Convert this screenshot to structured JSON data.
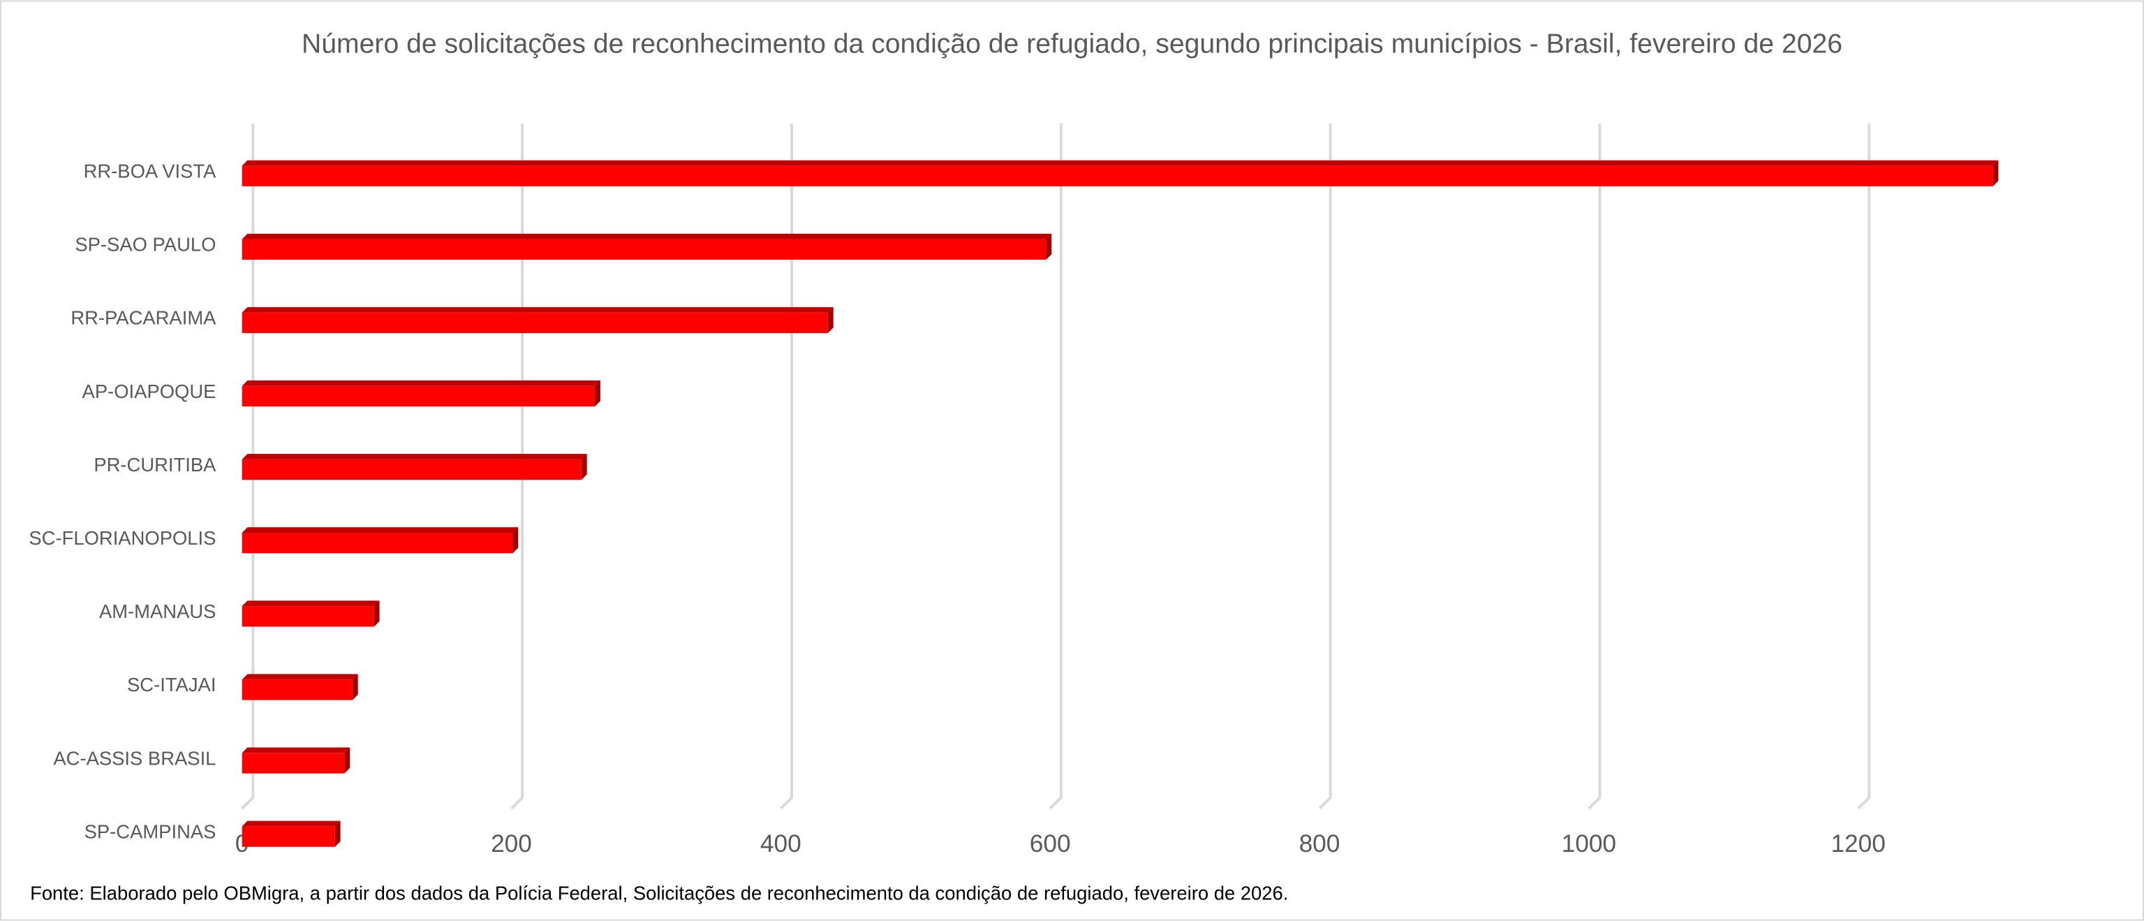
{
  "chart_data": {
    "type": "bar3d_horizontal",
    "title": "Número de solicitações de reconhecimento da condição de refugiado, segundo principais municípios - Brasil, fevereiro de 2026",
    "categories": [
      "RR-BOA VISTA",
      "SP-SAO PAULO",
      "RR-PACARAIMA",
      "AP-OIAPOQUE",
      "PR-CURITIBA",
      "SC-FLORIANOPOLIS",
      "AM-MANAUS",
      "SC-ITAJAI",
      "AC-ASSIS BRASIL",
      "SP-CAMPINAS"
    ],
    "values": [
      1300,
      597,
      435,
      262,
      252,
      201,
      98,
      82,
      76,
      69
    ],
    "color": "#ff0000",
    "xlim": [
      0,
      1400
    ],
    "xticks": [
      0,
      200,
      400,
      600,
      800,
      1000,
      1200
    ],
    "grid": true,
    "source": "Fonte: Elaborado pelo OBMigra, a partir dos dados da Polícia Federal, Solicitações de reconhecimento da condição de refugiado, fevereiro  de 2026."
  }
}
